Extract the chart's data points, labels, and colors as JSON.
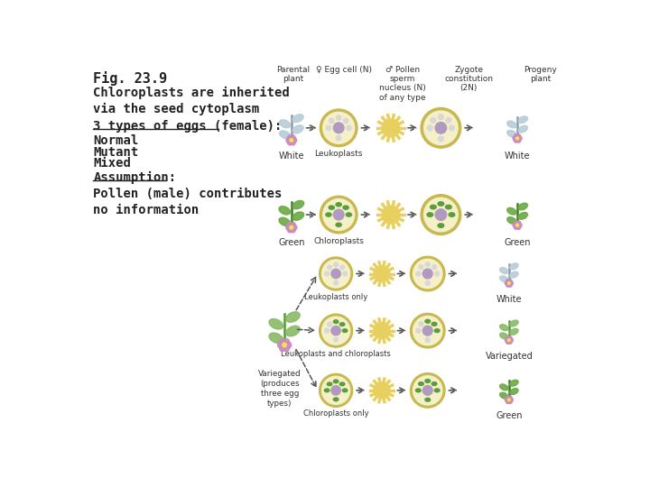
{
  "title": "Fig. 23.9",
  "subtitle": "Chloroplasts are inherited\nvia the seed cytoplasm",
  "section1_title": "3 types of eggs (female):",
  "section1_items": [
    "Normal",
    "Mutant",
    "Mixed"
  ],
  "section2_title": "Assumption:",
  "section2_body": "Pollen (male) contributes\nno information",
  "col_headers": [
    "Parental\nplant",
    "♀ Egg cell (N)",
    "♂ Pollen\nsperm\nnucleus (N)\nof any type",
    "Zygote\nconstitution\n(2N)",
    "Progeny\nplant"
  ],
  "bg_color": "#ffffff",
  "cell_outer_color": "#c8b850",
  "cell_inner_color": "#f5f0c8",
  "nucleus_color": "#b09ac0",
  "leukoplast_color": "#d8d8d8",
  "chloroplast_color": "#5a9e3c",
  "pollen_color": "#e8d060",
  "arrow_color": "#555555",
  "text_color": "#222222",
  "white_leaf": "#b8ccd8",
  "white_stem": "#8899aa",
  "green_leaf": "#6aaa44",
  "green_stem": "#3a7a22",
  "vari_leaf": "#88bb66",
  "vari_stem": "#559933",
  "flower_color": "#cc88bb",
  "flower_center": "#f0e060"
}
